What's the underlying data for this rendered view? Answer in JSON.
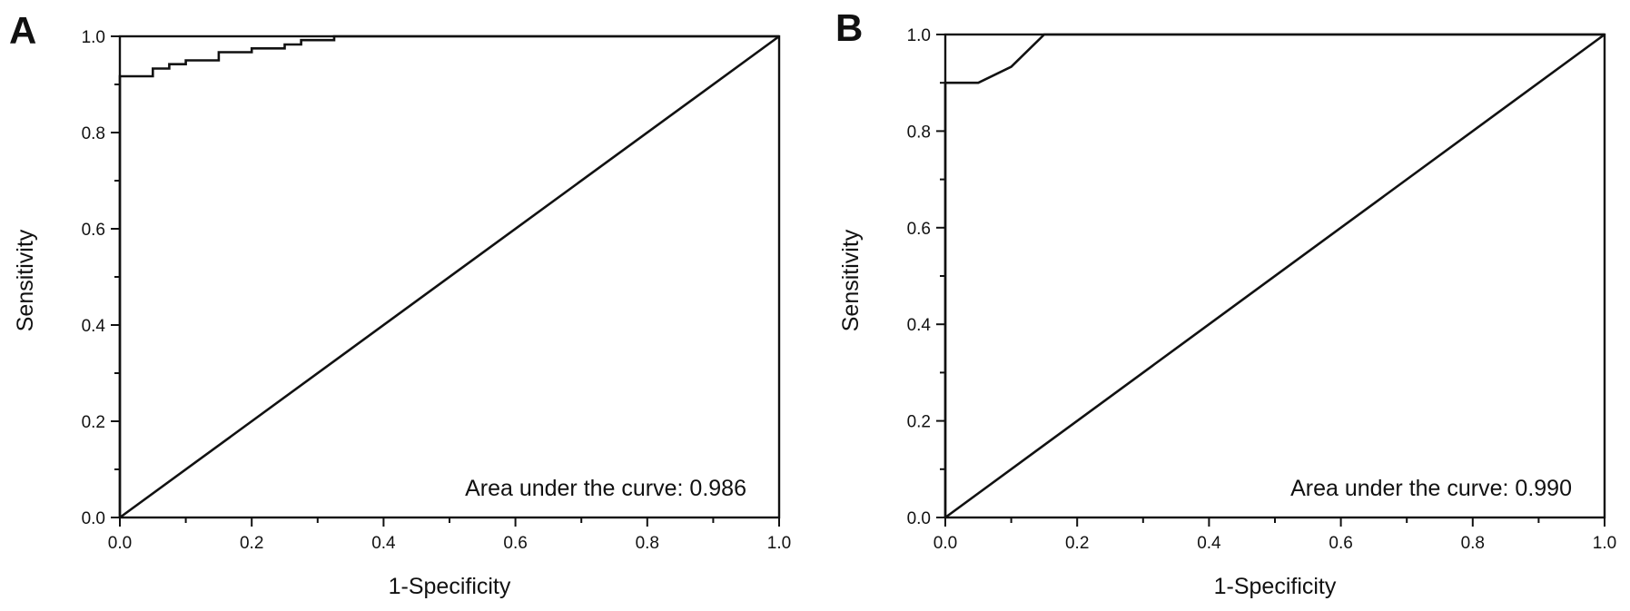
{
  "chart_data": [
    {
      "panel_label": "A",
      "type": "line",
      "xlabel": "1-Specificity",
      "ylabel": "Sensitivity",
      "xlim": [
        0,
        1
      ],
      "ylim": [
        0,
        1
      ],
      "x_ticks": [
        "0.0",
        "0.2",
        "0.4",
        "0.6",
        "0.8",
        "1.0"
      ],
      "y_ticks": [
        "0.0",
        "0.2",
        "0.4",
        "0.6",
        "0.8",
        "1.0"
      ],
      "grid": false,
      "annotation": "Area under the curve: 0.986",
      "series": [
        {
          "x": [
            0,
            0,
            0.05,
            0.05,
            0.075,
            0.075,
            0.1,
            0.1,
            0.15,
            0.15,
            0.2,
            0.2,
            0.25,
            0.25,
            0.275,
            0.275,
            0.325,
            0.325,
            1
          ],
          "y": [
            0,
            0.917,
            0.917,
            0.933,
            0.933,
            0.942,
            0.942,
            0.95,
            0.95,
            0.967,
            0.967,
            0.975,
            0.975,
            0.983,
            0.983,
            0.992,
            0.992,
            1,
            1
          ]
        },
        {
          "x": [
            0,
            1
          ],
          "y": [
            0,
            1
          ]
        }
      ]
    },
    {
      "panel_label": "B",
      "type": "line",
      "xlabel": "1-Specificity",
      "ylabel": "Sensitivity",
      "xlim": [
        0,
        1
      ],
      "ylim": [
        0,
        1
      ],
      "x_ticks": [
        "0.0",
        "0.2",
        "0.4",
        "0.6",
        "0.8",
        "1.0"
      ],
      "y_ticks": [
        "0.0",
        "0.2",
        "0.4",
        "0.6",
        "0.8",
        "1.0"
      ],
      "grid": false,
      "annotation": "Area under the curve: 0.990",
      "series": [
        {
          "x": [
            0,
            0,
            0.05,
            0.1,
            0.15,
            1
          ],
          "y": [
            0,
            0.9,
            0.9,
            0.933,
            1,
            1
          ]
        },
        {
          "x": [
            0,
            1
          ],
          "y": [
            0,
            1
          ]
        }
      ]
    }
  ]
}
